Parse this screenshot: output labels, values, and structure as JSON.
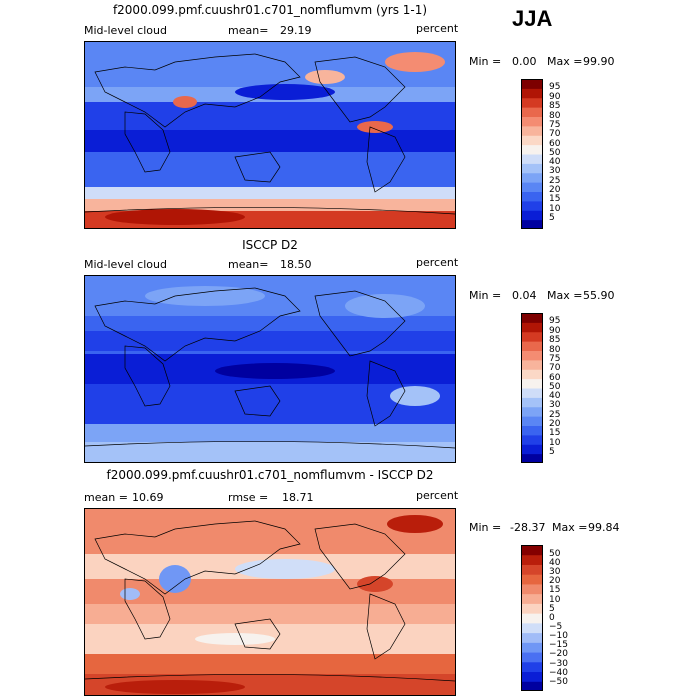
{
  "season": "JJA",
  "panels": [
    {
      "title": "f2000.099.pmf.cuushr01.c701_nomflumvm (yrs 1-1)",
      "left_label": "Mid-level cloud",
      "mean_label": "mean=",
      "mean_value": "29.19",
      "units": "percent",
      "min_label": "Min =",
      "min_value": "0.00",
      "max_label": "Max =",
      "max_value": "99.90",
      "colorbar_ticks": [
        "95",
        "90",
        "85",
        "80",
        "75",
        "70",
        "60",
        "50",
        "40",
        "30",
        "25",
        "20",
        "15",
        "10",
        "5"
      ]
    },
    {
      "title": "ISCCP D2",
      "left_label": "Mid-level cloud",
      "mean_label": "mean=",
      "mean_value": "18.50",
      "units": "percent",
      "min_label": "Min =",
      "min_value": "0.04",
      "max_label": "Max =",
      "max_value": "55.90",
      "colorbar_ticks": [
        "95",
        "90",
        "85",
        "80",
        "75",
        "70",
        "60",
        "50",
        "40",
        "30",
        "25",
        "20",
        "15",
        "10",
        "5"
      ]
    },
    {
      "title": "f2000.099.pmf.cuushr01.c701_nomflumvm - ISCCP D2",
      "mean_label": "mean =",
      "mean_value": "10.69",
      "rmse_label": "rmse =",
      "rmse_value": "18.71",
      "units": "percent",
      "min_label": "Min =",
      "min_value": "-28.37",
      "max_label": "Max =",
      "max_value": "99.84",
      "colorbar_ticks": [
        "50",
        "40",
        "30",
        "20",
        "15",
        "10",
        "5",
        "0",
        "−5",
        "−10",
        "−15",
        "−20",
        "−30",
        "−40",
        "−50"
      ]
    }
  ],
  "colors": {
    "abs_scale": [
      "#0000a0",
      "#0a1ed6",
      "#2040e8",
      "#3a64f0",
      "#5a86f4",
      "#7ca4f6",
      "#a4c2f8",
      "#cfddf8",
      "#f7f2ee",
      "#fbd8c6",
      "#f8b49c",
      "#f48c72",
      "#e9684c",
      "#d43a22",
      "#b01505",
      "#7d0000"
    ],
    "diff_scale": [
      "#0000a0",
      "#0a1ed6",
      "#2040e8",
      "#4a70f2",
      "#7097f5",
      "#a1bcf7",
      "#d0def8",
      "#f7f2ee",
      "#fbd3c0",
      "#f7ad93",
      "#f08a6c",
      "#e6663f",
      "#d5452a",
      "#b91e0b",
      "#840000"
    ]
  }
}
